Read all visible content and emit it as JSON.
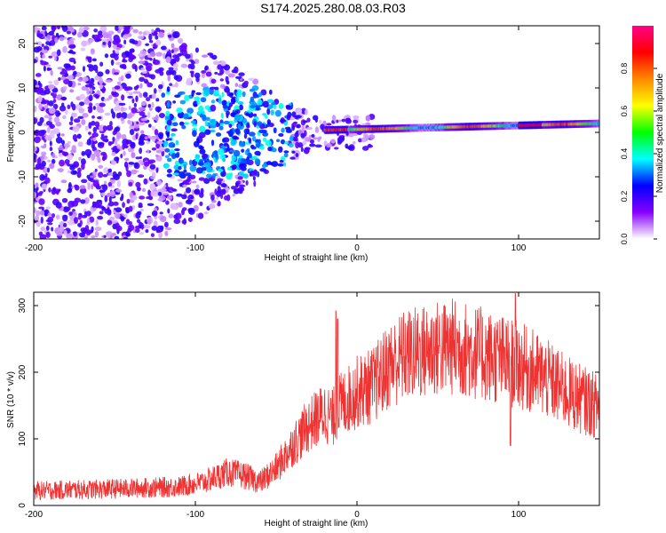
{
  "title": "S174.2025.280.08.03.R03",
  "chart_data": [
    {
      "type": "heatmap",
      "xlabel": "Height of straight line (km)",
      "ylabel": "Frequency (Hz)",
      "xlim": [
        -200,
        150
      ],
      "ylim": [
        -24,
        24
      ],
      "xticks": [
        -200,
        -100,
        0,
        100
      ],
      "yticks": [
        -20,
        -10,
        0,
        10,
        20
      ],
      "colorbar": {
        "label": "Normalized spectral amplitude",
        "range": [
          0,
          1
        ],
        "ticks": [
          "0.0",
          "0.2",
          "0.4",
          "0.6",
          "0.8"
        ],
        "tick_values": [
          0,
          0.2,
          0.4,
          0.6,
          0.8
        ],
        "stops": [
          "#ffffff",
          "#8800ff",
          "#0000ff",
          "#00ffff",
          "#00ff00",
          "#ffff00",
          "#ff8800",
          "#ff0000",
          "#ff0088"
        ]
      },
      "description_series": [
        {
          "name": "scattered noise",
          "x_range": [
            -200,
            -30
          ],
          "freq_spread_hz": 24
        },
        {
          "name": "signal line",
          "x_range": [
            -20,
            150
          ],
          "freq_hz_start": 0.5,
          "freq_hz_end": 2.0
        }
      ]
    },
    {
      "type": "line",
      "xlabel": "Height of straight line (km)",
      "ylabel": "SNR (10 * v/v)",
      "xlim": [
        -200,
        150
      ],
      "ylim": [
        0,
        320
      ],
      "xticks": [
        -200,
        -100,
        0,
        100
      ],
      "yticks": [
        0,
        100,
        200,
        300
      ],
      "color": "#ee3333",
      "series": [
        {
          "name": "SNR envelope",
          "x": [
            -200,
            -150,
            -110,
            -95,
            -80,
            -70,
            -60,
            -50,
            -40,
            -30,
            -20,
            -15,
            -12,
            -10,
            0,
            10,
            20,
            30,
            40,
            50,
            60,
            70,
            80,
            90,
            100,
            110,
            120,
            130,
            140,
            150
          ],
          "y": [
            22,
            25,
            28,
            35,
            50,
            45,
            35,
            55,
            90,
            120,
            140,
            130,
            150,
            150,
            170,
            180,
            210,
            225,
            230,
            235,
            238,
            232,
            225,
            218,
            210,
            200,
            185,
            170,
            158,
            148
          ],
          "spikes": [
            {
              "x": -13,
              "y": 292
            },
            {
              "x": -12,
              "y": 280
            },
            {
              "x": 98,
              "y": 318
            },
            {
              "x": 95,
              "y": 90
            }
          ]
        }
      ]
    }
  ]
}
